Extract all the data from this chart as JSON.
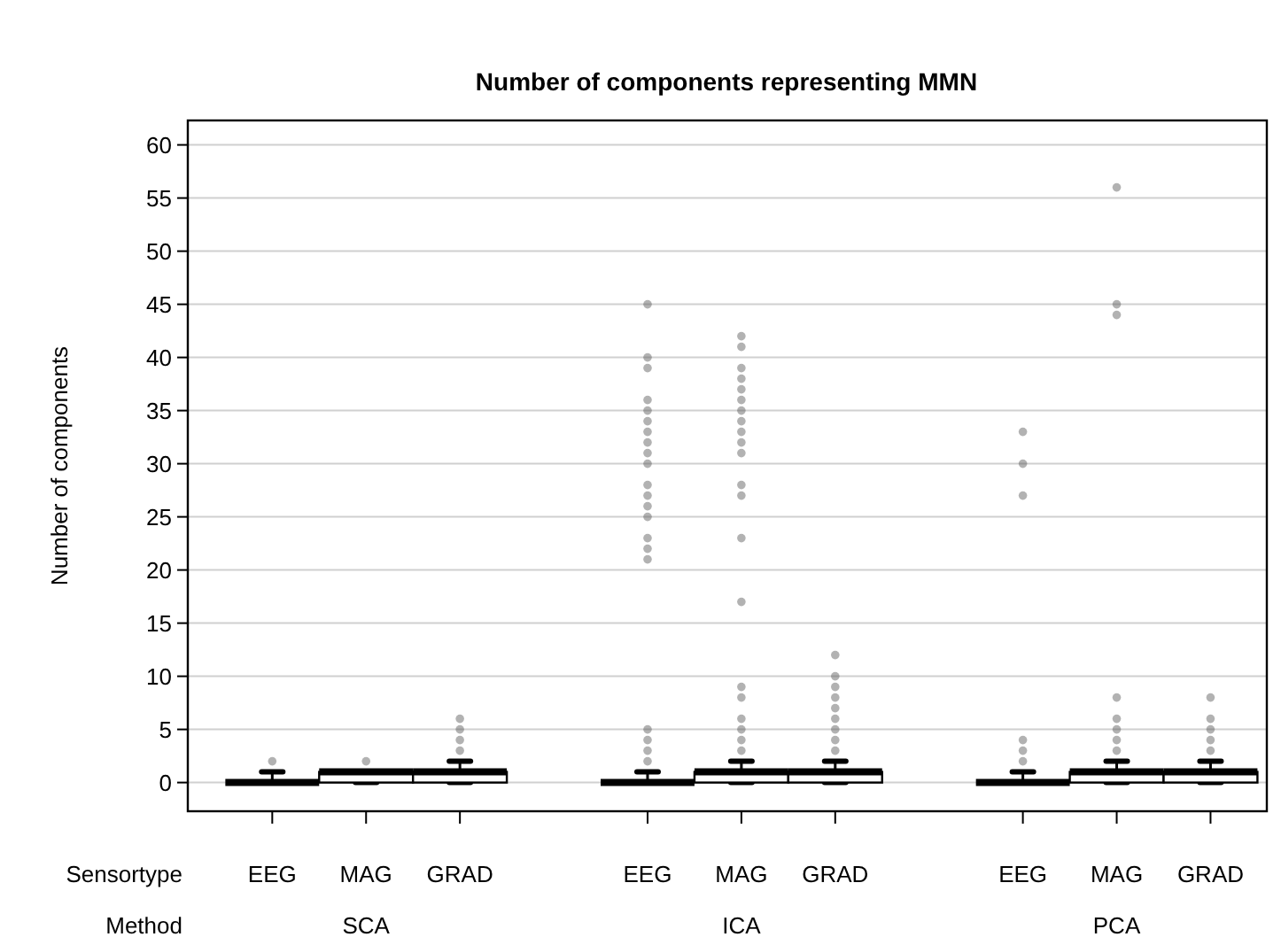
{
  "chart_data": {
    "type": "box",
    "title": "Number of components representing MMN",
    "ylabel": "Number of components",
    "categories": [
      "EEG",
      "MAG",
      "GRAD",
      null,
      "EEG",
      "MAG",
      "GRAD",
      null,
      "EEG",
      "MAG",
      "GRAD"
    ],
    "annotations": [
      "Sensortype",
      "Method",
      "SCA",
      "ICA",
      "PCA"
    ],
    "boxes": [
      {
        "low": 0,
        "q1": 0,
        "median": 0,
        "q3": 0,
        "high": 1,
        "outliers": [
          2
        ]
      },
      {
        "low": 0,
        "q1": 0,
        "median": 1,
        "q3": 1,
        "high": 1,
        "outliers": [
          2
        ]
      },
      {
        "low": 0,
        "q1": 0,
        "median": 1,
        "q3": 1,
        "high": 2,
        "outliers": [
          3,
          4,
          5,
          6
        ]
      },
      null,
      {
        "low": 0,
        "q1": 0,
        "median": 0,
        "q3": 0,
        "high": 1,
        "outliers": [
          2,
          3,
          4,
          5,
          21,
          22,
          23,
          25,
          26,
          27,
          28,
          30,
          31,
          32,
          33,
          34,
          35,
          36,
          39,
          40,
          45
        ]
      },
      {
        "low": 0,
        "q1": 0,
        "median": 1,
        "q3": 1,
        "high": 2,
        "outliers": [
          3,
          4,
          5,
          6,
          8,
          9,
          17,
          23,
          27,
          28,
          31,
          32,
          33,
          34,
          35,
          36,
          37,
          38,
          39,
          41,
          42
        ]
      },
      {
        "low": 0,
        "q1": 0,
        "median": 1,
        "q3": 1,
        "high": 2,
        "outliers": [
          3,
          4,
          5,
          6,
          7,
          8,
          9,
          10,
          12
        ]
      },
      null,
      {
        "low": 0,
        "q1": 0,
        "median": 0,
        "q3": 0,
        "high": 1,
        "outliers": [
          2,
          3,
          4,
          27,
          30,
          33
        ]
      },
      {
        "low": 0,
        "q1": 0,
        "median": 1,
        "q3": 1,
        "high": 2,
        "outliers": [
          3,
          4,
          5,
          6,
          8,
          44,
          45,
          56
        ]
      },
      {
        "low": 0,
        "q1": 0,
        "median": 1,
        "q3": 1,
        "high": 2,
        "outliers": [
          3,
          4,
          5,
          6,
          8
        ]
      }
    ],
    "ylim": [
      -2.7,
      62.3
    ],
    "yticks": [
      0,
      5,
      10,
      15,
      20,
      25,
      30,
      35,
      40,
      45,
      50,
      55,
      60
    ],
    "grid": "y"
  }
}
